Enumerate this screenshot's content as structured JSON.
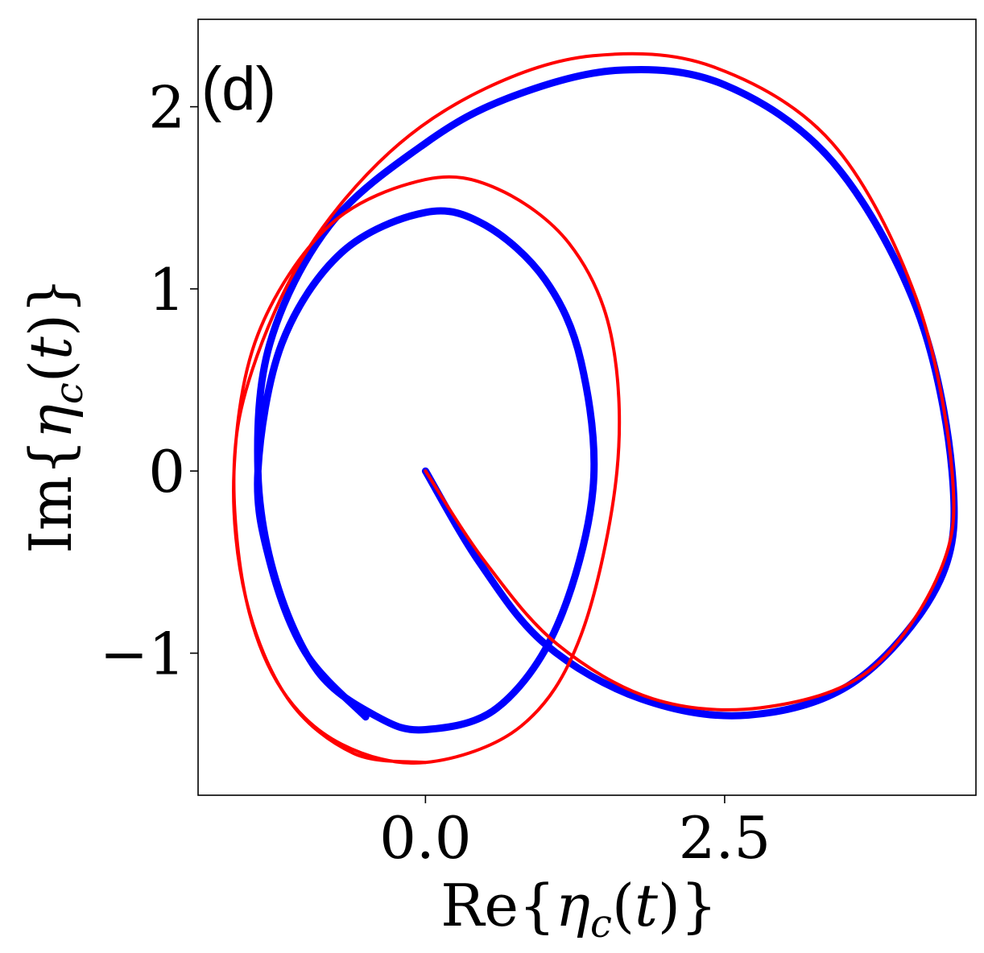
{
  "chart_data": {
    "type": "line",
    "panel_label": "(d)",
    "xlabel": "Re{η_c(t)}",
    "ylabel": "Im{η_c(t)}",
    "xlim": [
      -1.9,
      4.6
    ],
    "ylim": [
      -1.78,
      2.48
    ],
    "x_ticks": [
      {
        "value": 0.0,
        "label": "0.0"
      },
      {
        "value": 2.5,
        "label": "2.5"
      }
    ],
    "y_ticks": [
      {
        "value": -1,
        "label": "−1"
      },
      {
        "value": 0,
        "label": "0"
      },
      {
        "value": 1,
        "label": "1"
      },
      {
        "value": 2,
        "label": "2"
      }
    ],
    "grid": false,
    "series": [
      {
        "color": "#0000ff",
        "style": "thick",
        "description_points": "parametric trajectory η_c(t) starting at origin",
        "x": [
          0.0,
          0.45,
          1.0,
          1.8,
          2.7,
          3.6,
          4.3,
          4.4,
          4.1,
          3.4,
          2.5,
          1.6,
          0.7,
          0.0,
          -0.8,
          -1.3,
          -1.4,
          -1.25,
          -0.9,
          -0.4,
          0.0,
          0.6,
          1.1,
          1.4,
          1.3,
          1.0,
          0.5,
          0.0,
          -0.7,
          -1.2,
          -1.4,
          -1.3,
          -1.0,
          -0.5
        ],
        "y": [
          0.0,
          -0.5,
          -0.95,
          -1.25,
          -1.34,
          -1.15,
          -0.6,
          0.0,
          0.9,
          1.7,
          2.12,
          2.2,
          2.05,
          1.8,
          1.35,
          0.7,
          0.0,
          -0.6,
          -1.1,
          -1.35,
          -1.42,
          -1.3,
          -0.85,
          -0.1,
          0.6,
          1.05,
          1.35,
          1.42,
          1.2,
          0.7,
          0.0,
          -0.5,
          -1.0,
          -1.35
        ]
      },
      {
        "color": "#ff0000",
        "style": "thin",
        "x": [
          0.0,
          0.5,
          1.1,
          1.9,
          2.8,
          3.7,
          4.3,
          4.4,
          4.1,
          3.4,
          2.4,
          1.4,
          0.5,
          -0.3,
          -1.0,
          -1.45,
          -1.6,
          -1.5,
          -1.2,
          -0.7,
          0.0,
          0.8,
          1.3,
          1.6,
          1.55,
          1.2,
          0.6,
          0.0,
          -0.8,
          -1.4,
          -1.6,
          -1.5,
          -1.15,
          -0.6,
          0.0
        ],
        "y": [
          0.0,
          -0.5,
          -0.95,
          -1.25,
          -1.3,
          -1.1,
          -0.55,
          0.0,
          0.95,
          1.8,
          2.22,
          2.28,
          2.1,
          1.75,
          1.2,
          0.55,
          0.0,
          -0.7,
          -1.2,
          -1.5,
          -1.6,
          -1.4,
          -0.9,
          0.0,
          0.75,
          1.25,
          1.55,
          1.6,
          1.35,
          0.75,
          0.0,
          -0.7,
          -1.25,
          -1.55,
          -1.6
        ]
      }
    ]
  }
}
